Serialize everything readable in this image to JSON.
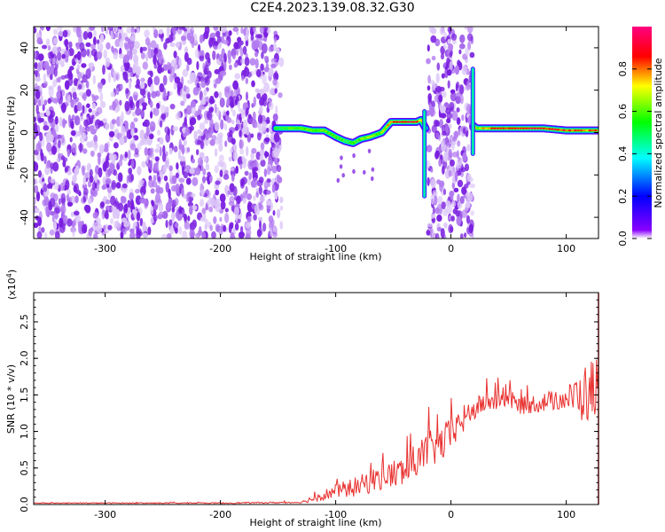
{
  "figure": {
    "title": "C2E4.2023.139.08.32.G30"
  },
  "chart_data": [
    {
      "type": "heatmap",
      "title": "C2E4.2023.139.08.32.G30",
      "xlabel": "Height of straight line (km)",
      "ylabel": "Frequency (Hz)",
      "xlim": [
        -362,
        128
      ],
      "ylim": [
        -50,
        50
      ],
      "xticks": [
        -300,
        -200,
        -100,
        0,
        100
      ],
      "yticks": [
        -40,
        -20,
        0,
        20,
        40
      ],
      "colorbar": {
        "label": "Normalized spectral amplitude",
        "range": [
          0.0,
          1.0
        ],
        "ticks": [
          0.0,
          0.2,
          0.4,
          0.6,
          0.8
        ],
        "tick_labels": [
          "0.0",
          "0.2",
          "0.4",
          "0.6",
          "0.8"
        ],
        "colormap": [
          "#ffffff",
          "#8800ff",
          "#0000ff",
          "#00ffff",
          "#00ff00",
          "#ffff00",
          "#ff0000",
          "#ff0080"
        ]
      },
      "noise_regions": [
        {
          "x_range": [
            -362,
            -147
          ],
          "frequency_range": [
            -50,
            50
          ]
        },
        {
          "x_range": [
            -20,
            19
          ],
          "frequency_range": [
            -50,
            50
          ]
        }
      ],
      "signal_track": {
        "x": [
          -152,
          -140,
          -130,
          -120,
          -110,
          -100,
          -92,
          -85,
          -78,
          -70,
          -60,
          -52,
          -42,
          -30,
          -26,
          -24,
          -22,
          20,
          22,
          30,
          40,
          60,
          80,
          100,
          110,
          120,
          128
        ],
        "frequency": [
          2,
          2,
          2,
          1,
          1,
          -2,
          -4,
          -5,
          -3,
          -2,
          0,
          5,
          5,
          5,
          6,
          4,
          2,
          3,
          2,
          2,
          2,
          2,
          2,
          1,
          1,
          1,
          1
        ],
        "amplitude": [
          0.5,
          0.55,
          0.6,
          0.55,
          0.6,
          0.55,
          0.5,
          0.5,
          0.6,
          0.6,
          0.6,
          0.8,
          0.95,
          0.9,
          0.6,
          0.5,
          0.5,
          0.6,
          0.65,
          0.8,
          0.85,
          0.9,
          0.9,
          0.85,
          0.8,
          0.8,
          0.8
        ]
      },
      "vertical_streaks": [
        {
          "x": -23,
          "frequency_range": [
            -30,
            10
          ]
        },
        {
          "x": 19,
          "frequency_range": [
            -10,
            30
          ]
        }
      ]
    },
    {
      "type": "line",
      "xlabel": "Height of straight line (km)",
      "ylabel": "SNR (10 * v/v)",
      "y_scale_label": "(x10",
      "y_scale_exponent": "4",
      "xlim": [
        -362,
        128
      ],
      "ylim": [
        0,
        2.9
      ],
      "xticks": [
        -300,
        -200,
        -100,
        0,
        100
      ],
      "yticks": [
        0.0,
        0.5,
        1.0,
        1.5,
        2.0,
        2.5
      ],
      "ytick_labels": [
        "0.0",
        "0.5",
        "1.0",
        "1.5",
        "2.0",
        "2.5"
      ],
      "series": [
        {
          "color": "#e8312f",
          "trend": {
            "x": [
              -362,
              -300,
              -200,
              -130,
              -120,
              -100,
              -80,
              -60,
              -40,
              -30,
              -20,
              -10,
              0,
              10,
              20,
              30,
              50,
              60,
              80,
              100,
              115,
              128
            ],
            "y": [
              0.02,
              0.02,
              0.02,
              0.03,
              0.08,
              0.18,
              0.25,
              0.38,
              0.45,
              0.6,
              0.75,
              0.8,
              0.95,
              1.15,
              1.3,
              1.4,
              1.45,
              1.35,
              1.4,
              1.45,
              1.5,
              1.6
            ]
          },
          "noise_amplitude": {
            "x": [
              -362,
              -130,
              -120,
              -100,
              -60,
              -30,
              0,
              20,
              60,
              100,
              115,
              128
            ],
            "y": [
              0.005,
              0.01,
              0.05,
              0.1,
              0.18,
              0.25,
              0.25,
              0.15,
              0.12,
              0.15,
              0.4,
              0.5
            ]
          }
        }
      ]
    }
  ]
}
